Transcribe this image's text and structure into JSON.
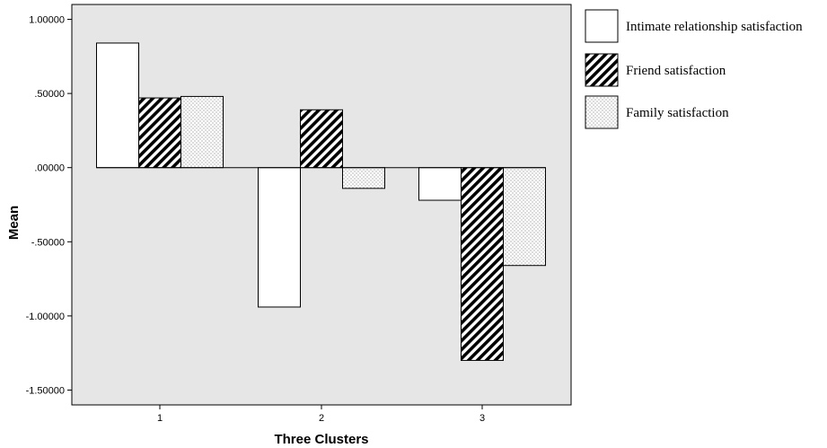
{
  "chart_data": {
    "type": "bar",
    "title": "",
    "xlabel": "Three Clusters",
    "ylabel": "Mean",
    "categories": [
      "1",
      "2",
      "3"
    ],
    "ylim": [
      -1.6,
      1.1
    ],
    "yticks": [
      1.0,
      0.5,
      0.0,
      -0.5,
      -1.0,
      -1.5
    ],
    "ytick_labels": [
      "1.00000",
      ".50000",
      ".00000",
      "-.50000",
      "-1.00000",
      "-1.50000"
    ],
    "grid": false,
    "legend_position": "right",
    "series": [
      {
        "name": "Intimate relationship satisfaction",
        "pattern": "plain",
        "values": [
          0.84,
          -0.94,
          -0.22
        ]
      },
      {
        "name": "Friend satisfaction",
        "pattern": "diagonal-hatch",
        "values": [
          0.47,
          0.39,
          -1.3
        ]
      },
      {
        "name": "Family satisfaction",
        "pattern": "dotted",
        "values": [
          0.48,
          -0.14,
          -0.66
        ]
      }
    ],
    "colors": {
      "plot_background": "#e6e6e6",
      "bar_fill": "#ffffff",
      "hatch": "#000000",
      "dots": "#555555"
    }
  }
}
